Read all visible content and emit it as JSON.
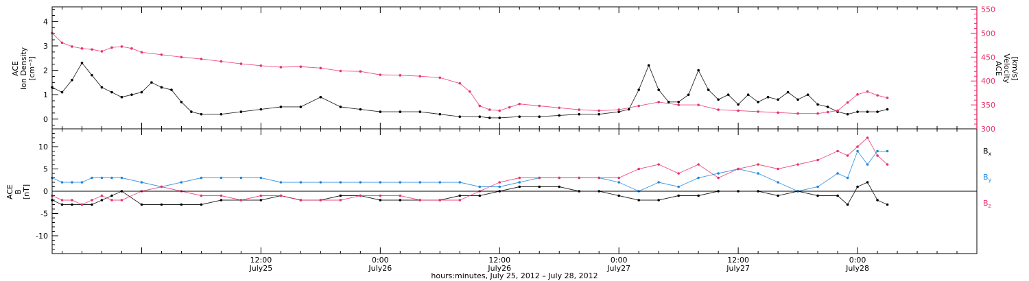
{
  "colors": {
    "black": "#000000",
    "pink": "#e8336a",
    "blue": "#1f86e0"
  },
  "x_ticks": [
    {
      "hour": 12,
      "time": "12:00",
      "day": "July25"
    },
    {
      "hour": 24,
      "time": "0:00",
      "day": "July26"
    },
    {
      "hour": 36,
      "time": "12:00",
      "day": "July26"
    },
    {
      "hour": 48,
      "time": "0:00",
      "day": "July27"
    },
    {
      "hour": 60,
      "time": "12:00",
      "day": "July27"
    },
    {
      "hour": 72,
      "time": "0:00",
      "day": "July28"
    }
  ],
  "xlabel": "hours:minutes, July 25, 2012 – July 28, 2012",
  "chart_data": [
    {
      "type": "scatter",
      "ylabel": [
        "ACE",
        "Ion Density",
        "[cm⁻³]"
      ],
      "y2label": [
        "ACE",
        "Velocity",
        "[km/s]"
      ],
      "x_unit": "hours since 2012-07-25 00:00",
      "xlim": [
        -9,
        84
      ],
      "ylim": [
        -0.4,
        4.6
      ],
      "y_ticks": [
        0,
        1,
        2,
        3,
        4
      ],
      "y2lim": [
        300,
        555
      ],
      "y2_ticks": [
        300,
        350,
        400,
        450,
        500,
        550
      ],
      "series": [
        {
          "label": "Ion Density",
          "color": "#000000",
          "axis": "left",
          "x": [
            -9,
            -8,
            -7,
            -6,
            -5,
            -4,
            -3,
            -2,
            -1,
            0,
            1,
            2,
            3,
            4,
            5,
            6,
            8,
            10,
            12,
            14,
            16,
            18,
            20,
            22,
            24,
            26,
            28,
            30,
            32,
            34,
            35,
            36,
            38,
            40,
            42,
            44,
            46,
            48,
            49,
            50,
            51,
            52,
            53,
            54,
            55,
            56,
            57,
            58,
            59,
            60,
            61,
            62,
            63,
            64,
            65,
            66,
            67,
            68,
            69,
            70,
            71,
            72,
            73,
            74,
            75
          ],
          "y": [
            1.3,
            1.1,
            1.6,
            2.3,
            1.8,
            1.3,
            1.1,
            0.9,
            1.0,
            1.1,
            1.5,
            1.3,
            1.2,
            0.7,
            0.3,
            0.2,
            0.2,
            0.3,
            0.4,
            0.5,
            0.5,
            0.9,
            0.5,
            0.4,
            0.3,
            0.3,
            0.3,
            0.2,
            0.1,
            0.1,
            0.05,
            0.05,
            0.1,
            0.1,
            0.15,
            0.2,
            0.2,
            0.3,
            0.4,
            1.2,
            2.2,
            1.2,
            0.7,
            0.7,
            1.0,
            2.0,
            1.2,
            0.8,
            1.0,
            0.6,
            1.0,
            0.7,
            0.9,
            0.8,
            1.1,
            0.8,
            1.0,
            0.6,
            0.5,
            0.3,
            0.2,
            0.3,
            0.3,
            0.3,
            0.4
          ]
        },
        {
          "label": "Velocity",
          "color": "#e8336a",
          "axis": "right",
          "x": [
            -9,
            -8,
            -7,
            -6,
            -5,
            -4,
            -3,
            -2,
            -1,
            0,
            2,
            4,
            6,
            8,
            10,
            12,
            14,
            16,
            18,
            20,
            22,
            24,
            26,
            28,
            30,
            32,
            33,
            34,
            35,
            36,
            37,
            38,
            40,
            42,
            44,
            46,
            48,
            50,
            52,
            54,
            56,
            58,
            60,
            62,
            64,
            66,
            68,
            69,
            70,
            71,
            72,
            73,
            74,
            75
          ],
          "y": [
            500,
            480,
            472,
            468,
            466,
            462,
            470,
            472,
            468,
            460,
            455,
            450,
            446,
            441,
            436,
            432,
            429,
            430,
            427,
            421,
            420,
            413,
            412,
            410,
            407,
            395,
            378,
            348,
            340,
            338,
            345,
            352,
            348,
            344,
            340,
            338,
            340,
            348,
            356,
            350,
            350,
            340,
            338,
            336,
            334,
            332,
            332,
            335,
            338,
            355,
            372,
            378,
            370,
            365
          ]
        }
      ]
    },
    {
      "type": "scatter",
      "ylabel": [
        "ACE",
        "B",
        "[nT]"
      ],
      "x_unit": "hours since 2012-07-25 00:00",
      "xlim": [
        -9,
        84
      ],
      "ylim": [
        -14,
        14
      ],
      "y_ticks": [
        -10,
        -5,
        0,
        5,
        10
      ],
      "zero_line": true,
      "series": [
        {
          "label": "Bx",
          "color": "#000000",
          "x": [
            -9,
            -8,
            -7,
            -6,
            -5,
            -4,
            -3,
            -2,
            0,
            2,
            4,
            6,
            8,
            10,
            12,
            14,
            16,
            18,
            20,
            22,
            24,
            26,
            28,
            30,
            32,
            34,
            36,
            38,
            40,
            42,
            44,
            46,
            48,
            50,
            52,
            54,
            56,
            58,
            60,
            62,
            64,
            66,
            68,
            70,
            71,
            72,
            73,
            74,
            75
          ],
          "y": [
            -2,
            -3,
            -3,
            -3,
            -3,
            -2,
            -1,
            0,
            -3,
            -3,
            -3,
            -3,
            -2,
            -2,
            -2,
            -1,
            -2,
            -2,
            -1,
            -1,
            -2,
            -2,
            -2,
            -2,
            -1,
            -1,
            0,
            1,
            1,
            1,
            0,
            0,
            -1,
            -2,
            -2,
            -1,
            -1,
            0,
            0,
            0,
            -1,
            0,
            -1,
            -1,
            -3,
            1,
            2,
            -2,
            -3
          ]
        },
        {
          "label": "By",
          "color": "#1f86e0",
          "x": [
            -9,
            -8,
            -7,
            -6,
            -5,
            -4,
            -3,
            -2,
            0,
            2,
            4,
            6,
            8,
            10,
            12,
            14,
            16,
            18,
            20,
            22,
            24,
            26,
            28,
            30,
            32,
            34,
            36,
            38,
            40,
            42,
            44,
            46,
            48,
            50,
            52,
            54,
            56,
            58,
            60,
            62,
            64,
            66,
            68,
            70,
            71,
            72,
            73,
            74,
            75
          ],
          "y": [
            3,
            2,
            2,
            2,
            3,
            3,
            3,
            3,
            2,
            1,
            2,
            3,
            3,
            3,
            3,
            2,
            2,
            2,
            2,
            2,
            2,
            2,
            2,
            2,
            2,
            1,
            1,
            2,
            3,
            3,
            3,
            3,
            2,
            0,
            2,
            1,
            3,
            4,
            5,
            4,
            2,
            0,
            1,
            4,
            3,
            9,
            6,
            9,
            9
          ]
        },
        {
          "label": "Bz",
          "color": "#e8336a",
          "x": [
            -9,
            -8,
            -7,
            -6,
            -5,
            -4,
            -3,
            -2,
            0,
            2,
            4,
            6,
            8,
            10,
            12,
            14,
            16,
            18,
            20,
            22,
            24,
            26,
            28,
            30,
            32,
            34,
            36,
            38,
            40,
            42,
            44,
            46,
            48,
            50,
            52,
            54,
            56,
            58,
            60,
            62,
            64,
            66,
            68,
            70,
            71,
            72,
            73,
            74,
            75
          ],
          "y": [
            -1,
            -2,
            -2,
            -3,
            -2,
            -1,
            -2,
            -2,
            0,
            1,
            0,
            -1,
            -1,
            -2,
            -1,
            -1,
            -2,
            -2,
            -2,
            -1,
            -1,
            -1,
            -2,
            -2,
            -2,
            0,
            2,
            3,
            3,
            3,
            3,
            3,
            3,
            5,
            6,
            4,
            6,
            3,
            5,
            6,
            5,
            6,
            7,
            9,
            8,
            10,
            12,
            8,
            6
          ]
        }
      ]
    }
  ]
}
